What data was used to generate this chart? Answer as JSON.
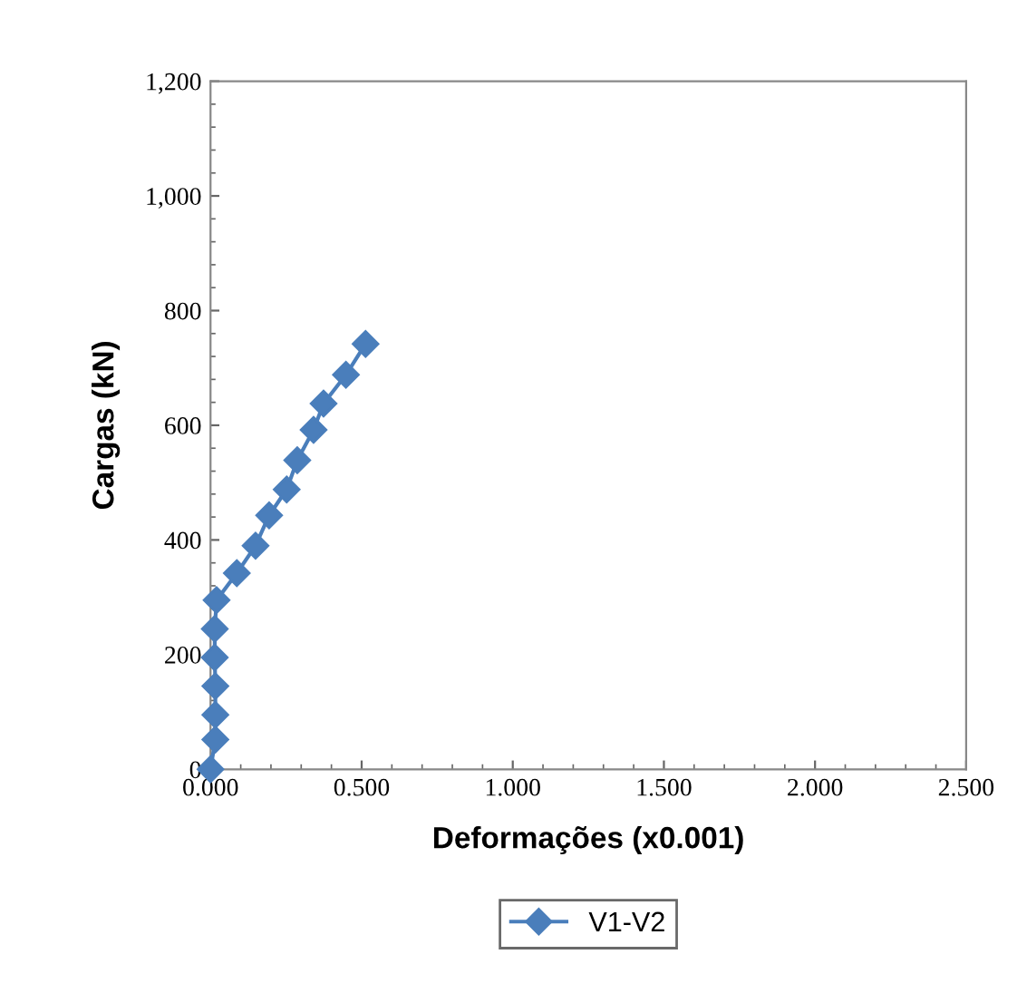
{
  "chart_data": {
    "type": "line",
    "xlabel": "Deformações (x0.001)",
    "ylabel": "Cargas (kN)",
    "series": [
      {
        "name": "V1-V2",
        "color": "#4a7ebb",
        "x": [
          0,
          0.016,
          0.016,
          0.016,
          0.014,
          0.014,
          0.02,
          0.087,
          0.149,
          0.194,
          0.252,
          0.287,
          0.341,
          0.374,
          0.448,
          0.513
        ],
        "values": [
          0,
          52,
          95,
          145,
          195,
          245,
          295,
          342,
          390,
          443,
          488,
          539,
          592,
          638,
          688,
          742
        ]
      }
    ],
    "xlim": [
      0,
      2.5
    ],
    "ylim": [
      0,
      1200
    ],
    "xticks": [
      {
        "value": 0,
        "label": "0.000"
      },
      {
        "value": 0.5,
        "label": "0.500"
      },
      {
        "value": 1,
        "label": "1.000"
      },
      {
        "value": 1.5,
        "label": "1.500"
      },
      {
        "value": 2,
        "label": "2.000"
      },
      {
        "value": 2.5,
        "label": "2.500"
      }
    ],
    "yticks": [
      0,
      200,
      400,
      600,
      800,
      {
        "value": 1000,
        "label": "1,000"
      },
      {
        "value": 1200,
        "label": "1,200"
      }
    ],
    "marker": "diamond",
    "line_style": "solid",
    "legend": "bottom",
    "grid": false
  }
}
